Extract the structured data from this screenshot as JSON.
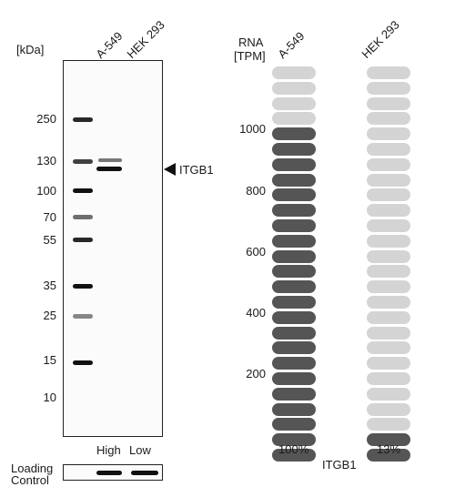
{
  "western_blot": {
    "kda_label": "[kDa]",
    "lanes": [
      "A-549",
      "HEK 293"
    ],
    "markers": [
      "250",
      "130",
      "100",
      "70",
      "55",
      "35",
      "25",
      "15",
      "10"
    ],
    "target_label": "ITGB1",
    "high_label": "High",
    "low_label": "Low",
    "loading_control_line1": "Loading",
    "loading_control_line2": "Control"
  },
  "rna": {
    "header_line1": "RNA",
    "header_line2": "[TPM]",
    "columns": [
      "A-549",
      "HEK 293"
    ],
    "tpm_ticks": [
      "1000",
      "800",
      "600",
      "400",
      "200"
    ],
    "gene_label": "ITGB1",
    "percentages": [
      "100%",
      "13%"
    ],
    "filled_pills": [
      22,
      2
    ],
    "total_pills": 26
  },
  "colors": {
    "pill_filled": "#555555",
    "pill_empty": "#d4d4d4",
    "band": "#111111"
  }
}
